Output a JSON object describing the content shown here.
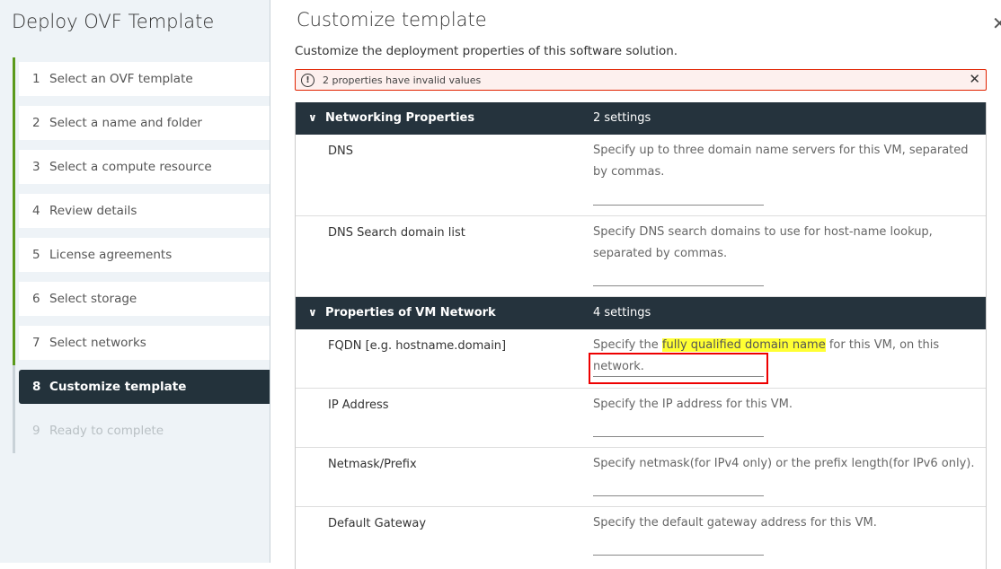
{
  "sidebar": {
    "title": "Deploy OVF Template",
    "steps": [
      {
        "num": "1",
        "label": "Select an OVF template"
      },
      {
        "num": "2",
        "label": "Select a name and folder"
      },
      {
        "num": "3",
        "label": "Select a compute resource"
      },
      {
        "num": "4",
        "label": "Review details"
      },
      {
        "num": "5",
        "label": "License agreements"
      },
      {
        "num": "6",
        "label": "Select storage"
      },
      {
        "num": "7",
        "label": "Select networks"
      },
      {
        "num": "8",
        "label": "Customize template"
      },
      {
        "num": "9",
        "label": "Ready to complete"
      }
    ],
    "active_step": 8
  },
  "main": {
    "title": "Customize template",
    "subtitle": "Customize the deployment properties of this software solution.",
    "alert": {
      "text": "2 properties have invalid values",
      "icon": "exclamation-circle-icon"
    },
    "groups": [
      {
        "name": "Networking Properties",
        "count": "2 settings",
        "rows": [
          {
            "label": "DNS",
            "desc": "Specify up to three domain name servers for this VM, separated by commas.",
            "value": ""
          },
          {
            "label": "DNS Search domain list",
            "desc": "Specify DNS search domains to use for host-name lookup, separated by commas.",
            "value": ""
          }
        ]
      },
      {
        "name": "Properties of VM Network",
        "count": "4 settings",
        "rows": [
          {
            "label": "FQDN [e.g. hostname.domain]",
            "desc_pre": "Specify the ",
            "desc_hl": "fully qualified domain name",
            "desc_post": " for this VM, on this network.",
            "value": ""
          },
          {
            "label": "IP Address",
            "desc": "Specify the IP address for this VM.",
            "value": ""
          },
          {
            "label": "Netmask/Prefix",
            "desc": "Specify netmask(for IPv4 only) or the prefix length(for IPv6 only).",
            "value": ""
          },
          {
            "label": "Default Gateway",
            "desc": "Specify the default gateway address for this VM.",
            "value": ""
          }
        ]
      }
    ]
  },
  "colors": {
    "accent_green": "#5b9a1c",
    "header_dark": "#25333d",
    "error_red": "#e12200",
    "highlight": "#ffff33"
  }
}
